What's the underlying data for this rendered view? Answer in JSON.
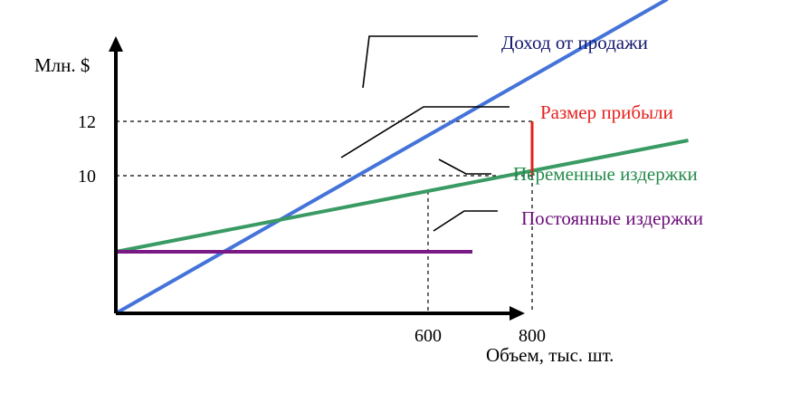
{
  "chart_data": {
    "type": "line",
    "xlabel": "Объем, тыс. шт.",
    "ylabel": "Млн. $",
    "x_ticks": [
      600,
      800
    ],
    "y_ticks": [
      10,
      12
    ],
    "grid": false,
    "series": [
      {
        "name": "Доход от продажи",
        "color": "#4473d9",
        "points": [
          [
            0,
            -1.8
          ],
          [
            1060,
            16.5
          ]
        ]
      },
      {
        "name": "Переменные издержки",
        "color": "#3a9a63",
        "points": [
          [
            0,
            7.2
          ],
          [
            1100,
            11.3
          ]
        ]
      },
      {
        "name": "Постоянные издержки",
        "color": "#7a1a86",
        "points": [
          [
            0,
            7.2
          ],
          [
            1100,
            7.2
          ]
        ]
      }
    ],
    "profit_gap": {
      "name": "Размер прибыли",
      "color": "#e5201d",
      "x": 800,
      "from": 10,
      "to": 12
    },
    "reference_lines": {
      "x": [
        600,
        800
      ],
      "y": [
        10,
        12
      ]
    }
  }
}
